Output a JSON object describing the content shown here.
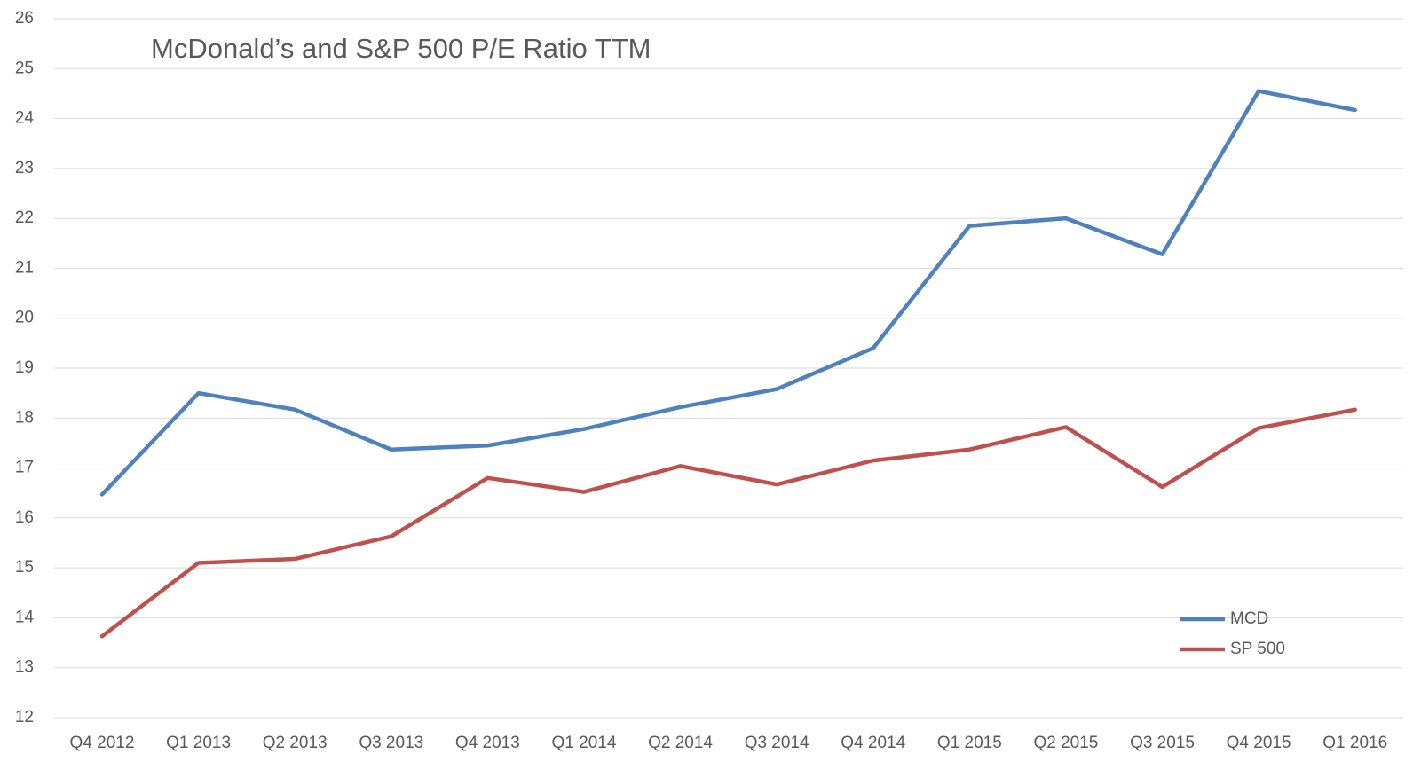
{
  "chart_data": {
    "type": "line",
    "title": "McDonald’s and S&P 500 P/E Ratio TTM",
    "categories": [
      "Q4 2012",
      "Q1 2013",
      "Q2 2013",
      "Q3 2013",
      "Q4 2013",
      "Q1 2014",
      "Q2 2014",
      "Q3 2014",
      "Q4 2014",
      "Q1 2015",
      "Q2 2015",
      "Q3 2015",
      "Q4 2015",
      "Q1 2016"
    ],
    "series": [
      {
        "name": "MCD",
        "color": "#4f81bd",
        "values": [
          16.47,
          18.5,
          18.17,
          17.37,
          17.45,
          17.78,
          18.22,
          18.58,
          19.4,
          21.85,
          22.0,
          21.28,
          24.55,
          24.17
        ]
      },
      {
        "name": "SP 500",
        "color": "#c0504d",
        "values": [
          13.63,
          15.1,
          15.18,
          15.63,
          16.8,
          16.52,
          17.04,
          16.67,
          17.15,
          17.37,
          17.82,
          16.62,
          17.8,
          18.17
        ]
      }
    ],
    "ylim": [
      12,
      26
    ],
    "yticks": [
      12,
      13,
      14,
      15,
      16,
      17,
      18,
      19,
      20,
      21,
      22,
      23,
      24,
      25,
      26
    ],
    "grid": true,
    "legend": "lower right"
  }
}
